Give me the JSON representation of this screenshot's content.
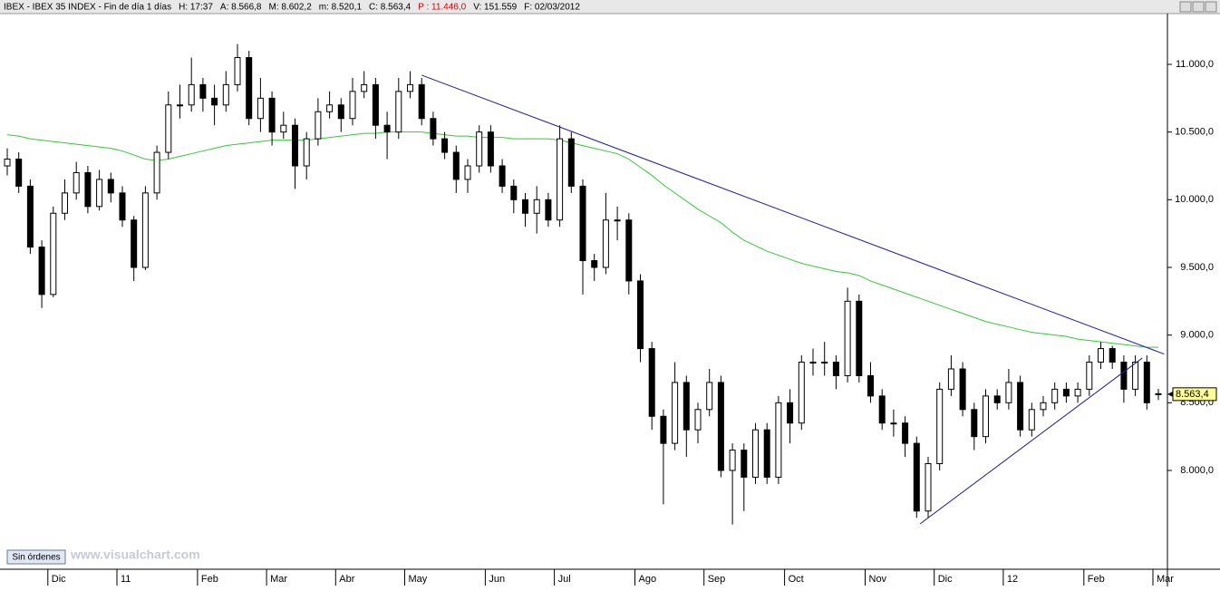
{
  "chart_data": {
    "type": "candlestick",
    "header": [
      "IBEX - IBEX 35 INDEX - Fin de día 1 días",
      "H: 17:37",
      "A: 8.566,8",
      "M: 8.602,2",
      "m: 8.520,1",
      "C: 8.563,4",
      "P : 11.446,0",
      "V: 151.559",
      "F: 02/03/2012"
    ],
    "button": "Sin órdenes",
    "watermark": "www.visualchart.com",
    "ylim": [
      7270,
      11375
    ],
    "yticks": [
      {
        "value": 8000,
        "label": "8.000,0"
      },
      {
        "value": 8500,
        "label": "8.500,0"
      },
      {
        "value": 9000,
        "label": "9.000,0"
      },
      {
        "value": 9500,
        "label": "9.500,0"
      },
      {
        "value": 10000,
        "label": "10.000,0"
      },
      {
        "value": 10500,
        "label": "10.500,0"
      },
      {
        "value": 11000,
        "label": "11.000,0"
      }
    ],
    "up_color": "#ffffff",
    "down_color": "#000000",
    "categories": [
      null,
      null,
      null,
      null,
      "Dic",
      null,
      null,
      null,
      null,
      null,
      "11",
      null,
      null,
      null,
      null,
      null,
      null,
      "Feb",
      null,
      null,
      null,
      null,
      null,
      "Mar",
      null,
      null,
      null,
      null,
      null,
      "Abr",
      null,
      null,
      null,
      null,
      null,
      "May",
      null,
      null,
      null,
      null,
      null,
      null,
      "Jun",
      null,
      null,
      null,
      null,
      null,
      "Jul",
      null,
      null,
      null,
      null,
      null,
      null,
      "Ago",
      null,
      null,
      null,
      null,
      null,
      "Sep",
      null,
      null,
      null,
      null,
      null,
      null,
      "Oct",
      null,
      null,
      null,
      null,
      null,
      null,
      "Nov",
      null,
      null,
      null,
      null,
      null,
      "Dic",
      null,
      null,
      null,
      null,
      null,
      "12",
      null,
      null,
      null,
      null,
      null,
      null,
      "Feb",
      null,
      null,
      null,
      null,
      null,
      "Mar"
    ],
    "ohlc": [
      [
        10250,
        10380,
        10180,
        10300
      ],
      [
        10300,
        10350,
        10050,
        10100
      ],
      [
        10100,
        10150,
        9600,
        9650
      ],
      [
        9650,
        9700,
        9200,
        9300
      ],
      [
        9300,
        9950,
        9280,
        9900
      ],
      [
        9900,
        10150,
        9850,
        10050
      ],
      [
        10050,
        10280,
        10000,
        10200
      ],
      [
        10200,
        10250,
        9900,
        9950
      ],
      [
        9950,
        10220,
        9920,
        10150
      ],
      [
        10150,
        10200,
        9980,
        10050
      ],
      [
        10050,
        10100,
        9800,
        9850
      ],
      [
        9850,
        9880,
        9400,
        9500
      ],
      [
        9500,
        10100,
        9480,
        10050
      ],
      [
        10050,
        10400,
        10000,
        10350
      ],
      [
        10350,
        10800,
        10300,
        10700
      ],
      [
        10700,
        10850,
        10600,
        10700
      ],
      [
        10700,
        11050,
        10650,
        10850
      ],
      [
        10850,
        10900,
        10650,
        10750
      ],
      [
        10750,
        10850,
        10550,
        10700
      ],
      [
        10700,
        10950,
        10650,
        10850
      ],
      [
        10850,
        11150,
        10800,
        11050
      ],
      [
        11050,
        11100,
        10550,
        10600
      ],
      [
        10600,
        10900,
        10500,
        10750
      ],
      [
        10750,
        10800,
        10400,
        10500
      ],
      [
        10500,
        10650,
        10450,
        10550
      ],
      [
        10550,
        10600,
        10080,
        10250
      ],
      [
        10250,
        10500,
        10150,
        10450
      ],
      [
        10450,
        10750,
        10400,
        10650
      ],
      [
        10650,
        10800,
        10600,
        10700
      ],
      [
        10700,
        10750,
        10500,
        10600
      ],
      [
        10600,
        10900,
        10550,
        10800
      ],
      [
        10800,
        10950,
        10750,
        10850
      ],
      [
        10850,
        10900,
        10450,
        10550
      ],
      [
        10550,
        10650,
        10300,
        10500
      ],
      [
        10500,
        10900,
        10450,
        10800
      ],
      [
        10800,
        10950,
        10750,
        10850
      ],
      [
        10850,
        10900,
        10550,
        10600
      ],
      [
        10600,
        10650,
        10400,
        10450
      ],
      [
        10450,
        10500,
        10300,
        10350
      ],
      [
        10350,
        10400,
        10050,
        10150
      ],
      [
        10150,
        10300,
        10050,
        10250
      ],
      [
        10250,
        10550,
        10200,
        10500
      ],
      [
        10500,
        10550,
        10200,
        10250
      ],
      [
        10250,
        10300,
        10050,
        10100
      ],
      [
        10100,
        10150,
        9900,
        10000
      ],
      [
        10000,
        10050,
        9800,
        9900
      ],
      [
        9900,
        10100,
        9750,
        10000
      ],
      [
        10000,
        10050,
        9800,
        9850
      ],
      [
        9850,
        10550,
        9800,
        10450
      ],
      [
        10450,
        10500,
        10050,
        10100
      ],
      [
        10100,
        10150,
        9300,
        9550
      ],
      [
        9550,
        9600,
        9400,
        9500
      ],
      [
        9500,
        10050,
        9450,
        9850
      ],
      [
        9850,
        9950,
        9700,
        9850
      ],
      [
        9850,
        9900,
        9300,
        9400
      ],
      [
        9400,
        9450,
        8800,
        8900
      ],
      [
        8900,
        8950,
        8300,
        8400
      ],
      [
        8400,
        8450,
        7750,
        8200
      ],
      [
        8200,
        8800,
        8150,
        8650
      ],
      [
        8650,
        8700,
        8100,
        8300
      ],
      [
        8300,
        8500,
        8200,
        8450
      ],
      [
        8450,
        8750,
        8400,
        8650
      ],
      [
        8650,
        8700,
        7950,
        8000
      ],
      [
        8000,
        8200,
        7600,
        8150
      ],
      [
        8150,
        8200,
        7700,
        7950
      ],
      [
        7950,
        8350,
        7900,
        8300
      ],
      [
        8300,
        8350,
        7900,
        7950
      ],
      [
        7950,
        8550,
        7900,
        8500
      ],
      [
        8500,
        8600,
        8200,
        8350
      ],
      [
        8350,
        8850,
        8300,
        8800
      ],
      [
        8800,
        8900,
        8700,
        8800
      ],
      [
        8800,
        8950,
        8700,
        8800
      ],
      [
        8800,
        8850,
        8600,
        8700
      ],
      [
        8700,
        9350,
        8650,
        9250
      ],
      [
        9250,
        9300,
        8650,
        8700
      ],
      [
        8700,
        8800,
        8500,
        8550
      ],
      [
        8550,
        8600,
        8300,
        8350
      ],
      [
        8350,
        8450,
        8250,
        8350
      ],
      [
        8350,
        8400,
        8100,
        8200
      ],
      [
        8200,
        8250,
        7650,
        7700
      ],
      [
        7700,
        8100,
        7650,
        8050
      ],
      [
        8050,
        8650,
        8000,
        8600
      ],
      [
        8600,
        8850,
        8550,
        8750
      ],
      [
        8750,
        8800,
        8400,
        8450
      ],
      [
        8450,
        8500,
        8150,
        8250
      ],
      [
        8250,
        8600,
        8200,
        8550
      ],
      [
        8550,
        8600,
        8450,
        8500
      ],
      [
        8500,
        8750,
        8450,
        8650
      ],
      [
        8650,
        8700,
        8250,
        8300
      ],
      [
        8300,
        8500,
        8250,
        8450
      ],
      [
        8450,
        8550,
        8400,
        8500
      ],
      [
        8500,
        8650,
        8450,
        8600
      ],
      [
        8600,
        8650,
        8500,
        8550
      ],
      [
        8550,
        8650,
        8500,
        8600
      ],
      [
        8600,
        8850,
        8550,
        8800
      ],
      [
        8800,
        8950,
        8750,
        8900
      ],
      [
        8900,
        8920,
        8750,
        8800
      ],
      [
        8800,
        8850,
        8500,
        8600
      ],
      [
        8600,
        8850,
        8550,
        8800
      ],
      [
        8800,
        8850,
        8450,
        8500
      ],
      [
        8566.8,
        8602.2,
        8520.1,
        8563.4
      ]
    ],
    "ma": {
      "color": "#33cc33",
      "values": [
        10480,
        10470,
        10450,
        10440,
        10430,
        10420,
        10410,
        10400,
        10390,
        10380,
        10360,
        10330,
        10300,
        10290,
        10300,
        10320,
        10340,
        10360,
        10380,
        10400,
        10410,
        10420,
        10430,
        10440,
        10440,
        10440,
        10440,
        10450,
        10460,
        10470,
        10480,
        10490,
        10490,
        10500,
        10500,
        10500,
        10500,
        10490,
        10480,
        10470,
        10470,
        10460,
        10460,
        10460,
        10450,
        10450,
        10450,
        10450,
        10440,
        10420,
        10400,
        10380,
        10360,
        10340,
        10300,
        10240,
        10180,
        10110,
        10050,
        9990,
        9930,
        9880,
        9830,
        9760,
        9700,
        9660,
        9620,
        9590,
        9560,
        9530,
        9510,
        9490,
        9470,
        9460,
        9440,
        9400,
        9370,
        9340,
        9310,
        9280,
        9250,
        9220,
        9190,
        9160,
        9130,
        9100,
        9080,
        9060,
        9040,
        9020,
        9010,
        9000,
        8990,
        8970,
        8960,
        8950,
        8940,
        8930,
        8920,
        8910,
        8910
      ]
    },
    "trendlines": [
      {
        "color": "#1a1aa8",
        "x": [
          36,
          100.5
        ],
        "y": [
          10920,
          8860
        ]
      },
      {
        "color": "#1a1aa8",
        "x": [
          79.3,
          98.6
        ],
        "y": [
          7605,
          8830
        ]
      }
    ],
    "last_price": {
      "value": 8563.4,
      "label": "8.563,4"
    }
  }
}
